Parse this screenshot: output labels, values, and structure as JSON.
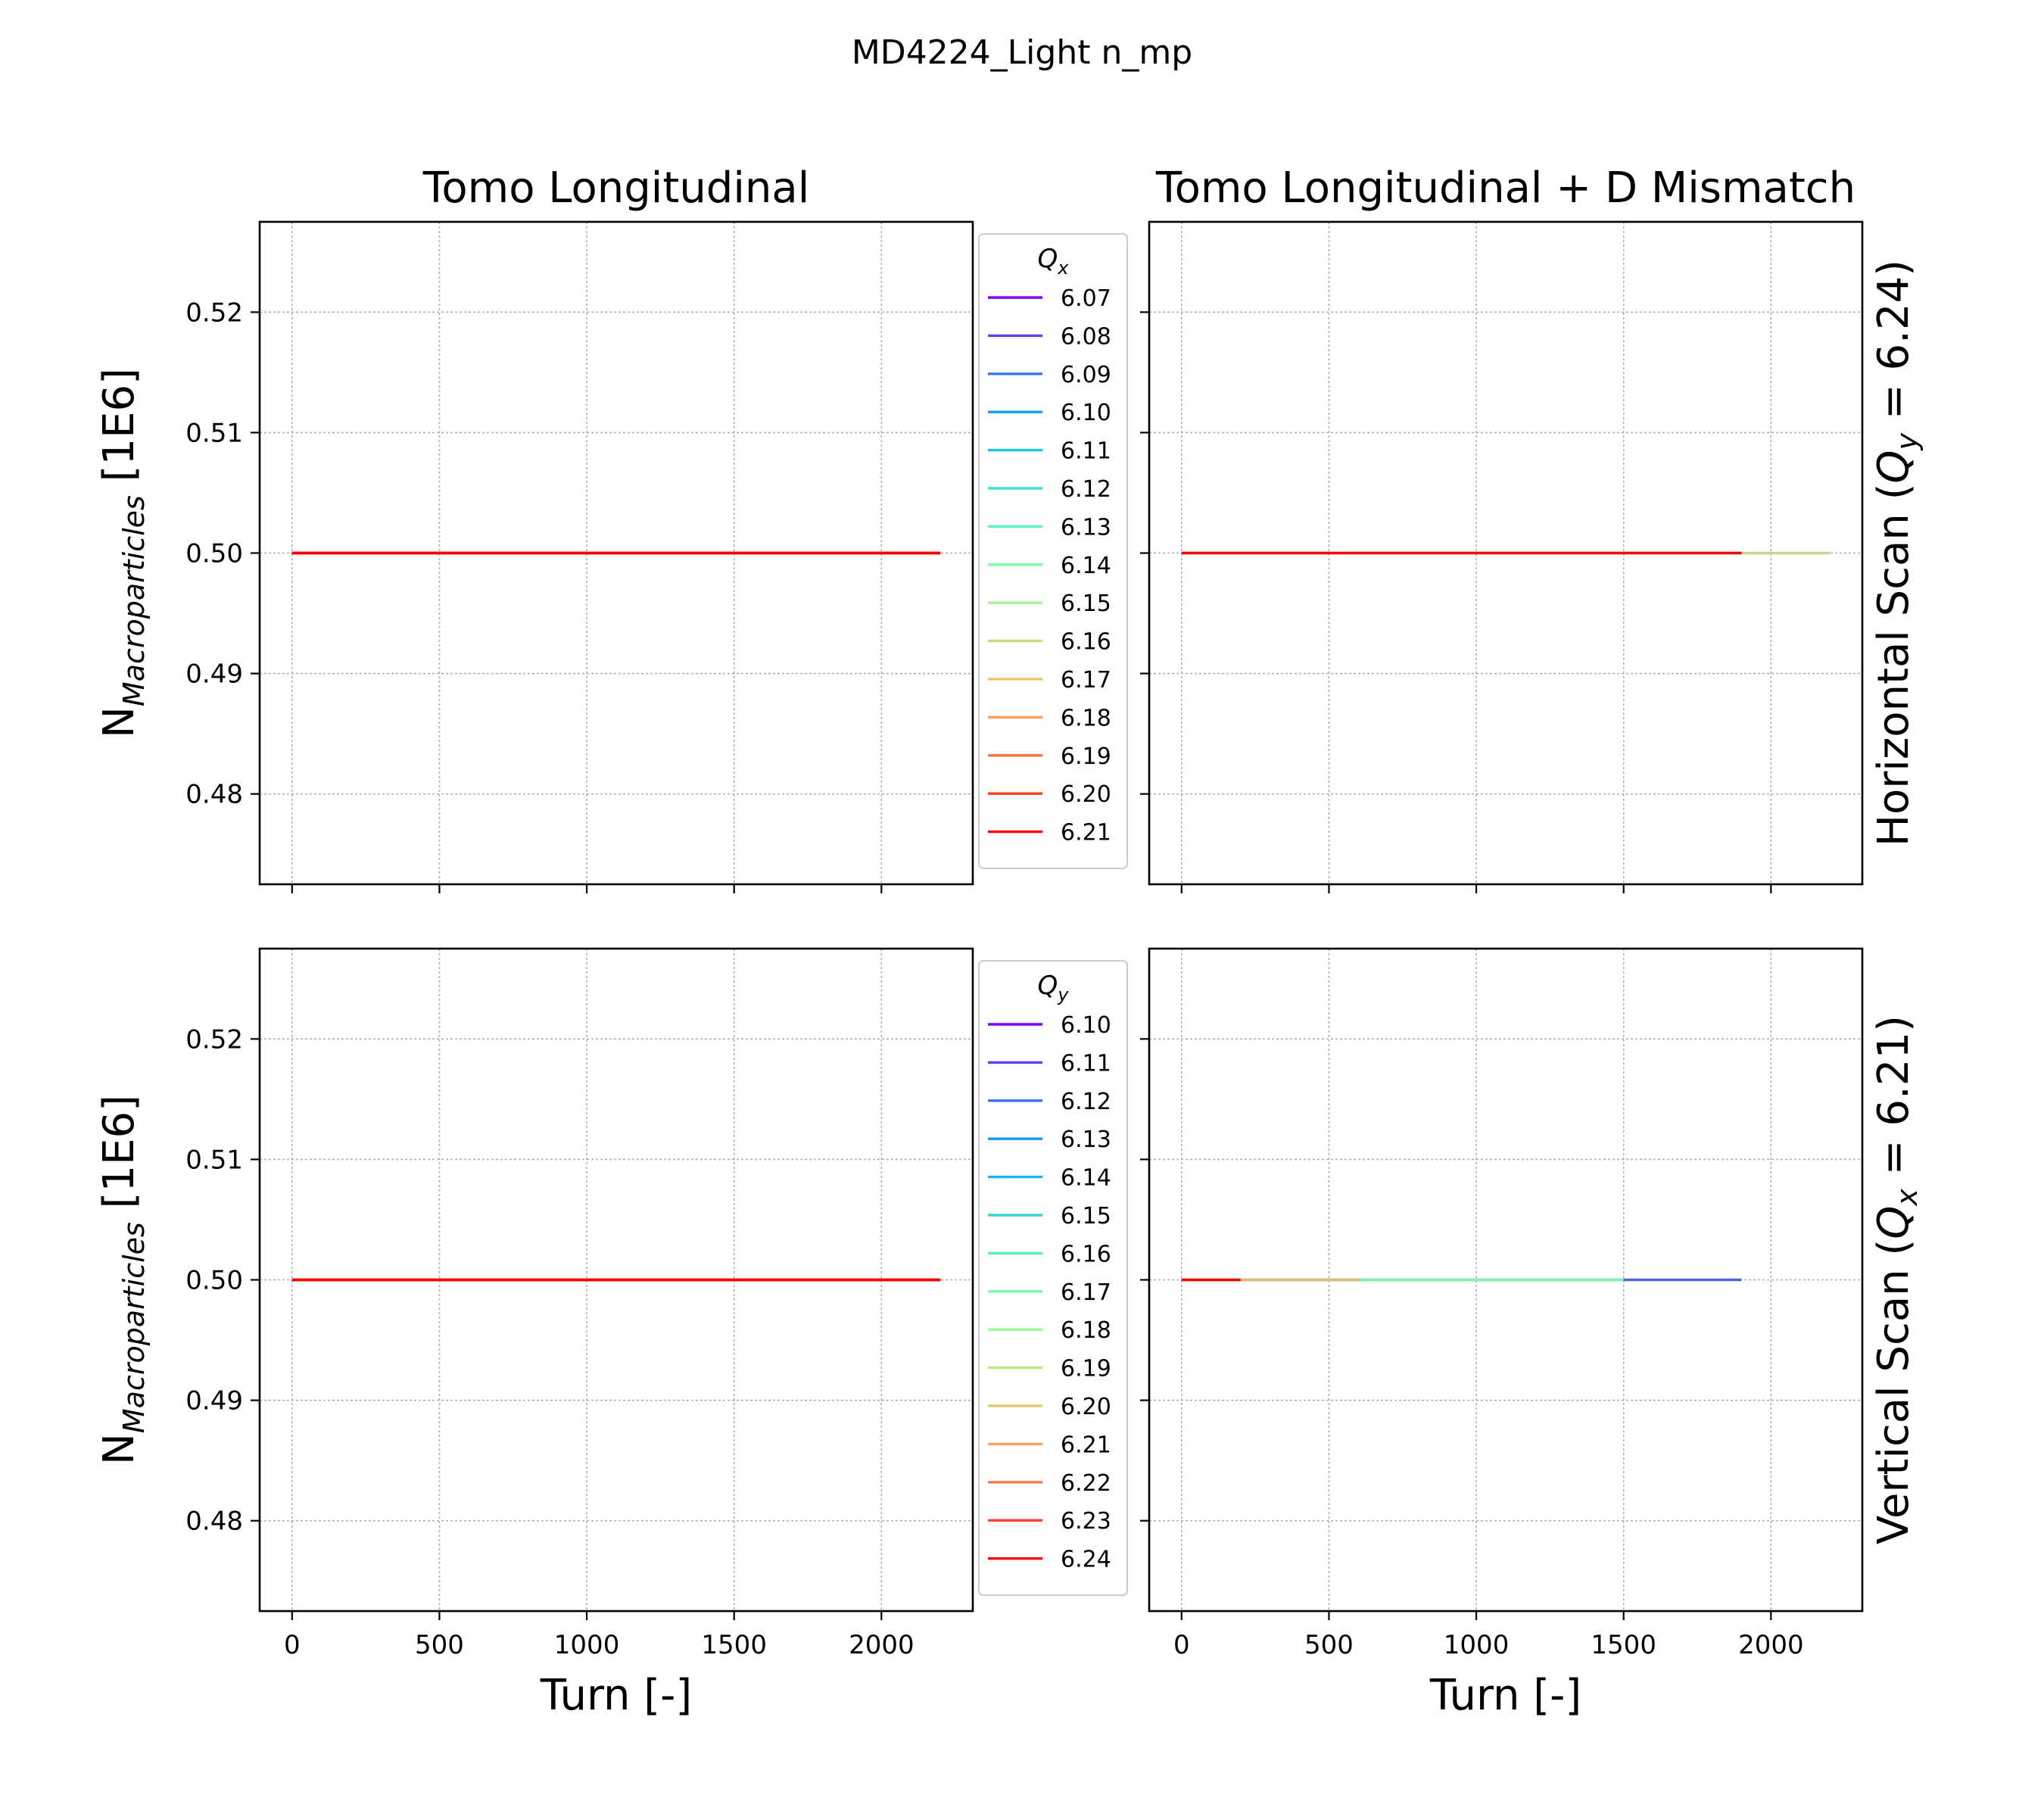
{
  "title": "MD4224_Light n_mp",
  "columns": [
    "Tomo Longitudinal",
    "Tomo Longitudinal + D Mismatch"
  ],
  "rows": [
    {
      "label_pre": "Horizontal Scan (",
      "label_sym": "Q",
      "label_sub": "y",
      "label_post": " = 6.24)"
    },
    {
      "label_pre": "Vertical Scan (",
      "label_sym": "Q",
      "label_sub": "x",
      "label_post": " = 6.21)"
    }
  ],
  "xlabel": "Turn [-]",
  "ylabel": {
    "main": "N",
    "sub": "Macroparticles",
    "unit": " [1E6]"
  },
  "chart_data": {
    "type": "line",
    "xlim": [
      -110,
      2310
    ],
    "ylim": [
      0.4725,
      0.5275
    ],
    "xticks": [
      0,
      500,
      1000,
      1500,
      2000
    ],
    "xtick_labels": [
      "0",
      "500",
      "1000",
      "1500",
      "2000"
    ],
    "yticks": [
      0.48,
      0.49,
      0.5,
      0.51,
      0.52
    ],
    "ytick_labels": [
      "0.48",
      "0.49",
      "0.50",
      "0.51",
      "0.52"
    ],
    "grid": true,
    "legend_placement": "outside right of left column",
    "panels": [
      {
        "row": 0,
        "col": 0,
        "legend": {
          "title_sym": "Q",
          "title_sub": "x"
        },
        "series": [
          {
            "name": "6.07",
            "color": "#8000ff",
            "x": [
              0,
              2200
            ],
            "y": [
              0.5,
              0.5
            ]
          },
          {
            "name": "6.08",
            "color": "#5a3ffb",
            "x": [
              0,
              2200
            ],
            "y": [
              0.5,
              0.5
            ]
          },
          {
            "name": "6.09",
            "color": "#3579f1",
            "x": [
              0,
              2200
            ],
            "y": [
              0.5,
              0.5
            ]
          },
          {
            "name": "6.10",
            "color": "#10a2f0",
            "x": [
              0,
              2200
            ],
            "y": [
              0.5,
              0.5
            ]
          },
          {
            "name": "6.11",
            "color": "#16c8e0",
            "x": [
              0,
              2200
            ],
            "y": [
              0.5,
              0.5
            ]
          },
          {
            "name": "6.12",
            "color": "#3ae0d0",
            "x": [
              0,
              2200
            ],
            "y": [
              0.5,
              0.5
            ]
          },
          {
            "name": "6.13",
            "color": "#5ef2b8",
            "x": [
              0,
              2200
            ],
            "y": [
              0.5,
              0.5
            ]
          },
          {
            "name": "6.14",
            "color": "#80fca8",
            "x": [
              0,
              2200
            ],
            "y": [
              0.5,
              0.5
            ]
          },
          {
            "name": "6.15",
            "color": "#a4f493",
            "x": [
              0,
              2200
            ],
            "y": [
              0.5,
              0.5
            ]
          },
          {
            "name": "6.16",
            "color": "#c8dc7c",
            "x": [
              0,
              2200
            ],
            "y": [
              0.5,
              0.5
            ]
          },
          {
            "name": "6.17",
            "color": "#f0c272",
            "x": [
              0,
              2200
            ],
            "y": [
              0.5,
              0.5
            ]
          },
          {
            "name": "6.18",
            "color": "#ff9a58",
            "x": [
              0,
              2200
            ],
            "y": [
              0.5,
              0.5
            ]
          },
          {
            "name": "6.19",
            "color": "#ff6c43",
            "x": [
              0,
              2200
            ],
            "y": [
              0.5,
              0.5
            ]
          },
          {
            "name": "6.20",
            "color": "#ff3a22",
            "x": [
              0,
              2200
            ],
            "y": [
              0.5,
              0.5
            ]
          },
          {
            "name": "6.21",
            "color": "#ff0000",
            "x": [
              0,
              2200
            ],
            "y": [
              0.5,
              0.5
            ]
          }
        ]
      },
      {
        "row": 0,
        "col": 1,
        "legend": null,
        "series": [
          {
            "name": "6.16",
            "color": "#d4cf8a",
            "x": [
              0,
              2200
            ],
            "y": [
              0.5,
              0.5
            ]
          },
          {
            "name": "6.21",
            "color": "#ff0000",
            "x": [
              0,
              1900
            ],
            "y": [
              0.5,
              0.5
            ]
          }
        ]
      },
      {
        "row": 1,
        "col": 0,
        "legend": {
          "title_sym": "Q",
          "title_sub": "y"
        },
        "series": [
          {
            "name": "6.10",
            "color": "#8000ff",
            "x": [
              0,
              2200
            ],
            "y": [
              0.5,
              0.5
            ]
          },
          {
            "name": "6.11",
            "color": "#5a3ffb",
            "x": [
              0,
              2200
            ],
            "y": [
              0.5,
              0.5
            ]
          },
          {
            "name": "6.12",
            "color": "#3a6ff4",
            "x": [
              0,
              2200
            ],
            "y": [
              0.5,
              0.5
            ]
          },
          {
            "name": "6.13",
            "color": "#1696f0",
            "x": [
              0,
              2200
            ],
            "y": [
              0.5,
              0.5
            ]
          },
          {
            "name": "6.14",
            "color": "#12b8e4",
            "x": [
              0,
              2200
            ],
            "y": [
              0.5,
              0.5
            ]
          },
          {
            "name": "6.15",
            "color": "#34d8d2",
            "x": [
              0,
              2200
            ],
            "y": [
              0.5,
              0.5
            ]
          },
          {
            "name": "6.16",
            "color": "#56ecbe",
            "x": [
              0,
              2200
            ],
            "y": [
              0.5,
              0.5
            ]
          },
          {
            "name": "6.17",
            "color": "#78f8ab",
            "x": [
              0,
              2200
            ],
            "y": [
              0.5,
              0.5
            ]
          },
          {
            "name": "6.18",
            "color": "#9af89a",
            "x": [
              0,
              2200
            ],
            "y": [
              0.5,
              0.5
            ]
          },
          {
            "name": "6.19",
            "color": "#bce486",
            "x": [
              0,
              2200
            ],
            "y": [
              0.5,
              0.5
            ]
          },
          {
            "name": "6.20",
            "color": "#e2c874",
            "x": [
              0,
              2200
            ],
            "y": [
              0.5,
              0.5
            ]
          },
          {
            "name": "6.21",
            "color": "#ffa25c",
            "x": [
              0,
              2200
            ],
            "y": [
              0.5,
              0.5
            ]
          },
          {
            "name": "6.22",
            "color": "#ff7648",
            "x": [
              0,
              2200
            ],
            "y": [
              0.5,
              0.5
            ]
          },
          {
            "name": "6.23",
            "color": "#ff4028",
            "x": [
              0,
              2200
            ],
            "y": [
              0.5,
              0.5
            ]
          },
          {
            "name": "6.24",
            "color": "#ff0000",
            "x": [
              0,
              2200
            ],
            "y": [
              0.5,
              0.5
            ]
          }
        ]
      },
      {
        "row": 1,
        "col": 1,
        "legend": null,
        "series": [
          {
            "name": "6.12",
            "color": "#4a62ee",
            "x": [
              0,
              1900
            ],
            "y": [
              0.5,
              0.5
            ]
          },
          {
            "name": "6.17",
            "color": "#7cf6ae",
            "x": [
              0,
              1500
            ],
            "y": [
              0.5,
              0.5
            ]
          },
          {
            "name": "6.20",
            "color": "#e8b878",
            "x": [
              0,
              600
            ],
            "y": [
              0.5,
              0.5
            ]
          },
          {
            "name": "6.24",
            "color": "#ff0000",
            "x": [
              0,
              200
            ],
            "y": [
              0.5,
              0.5
            ]
          }
        ]
      }
    ]
  }
}
